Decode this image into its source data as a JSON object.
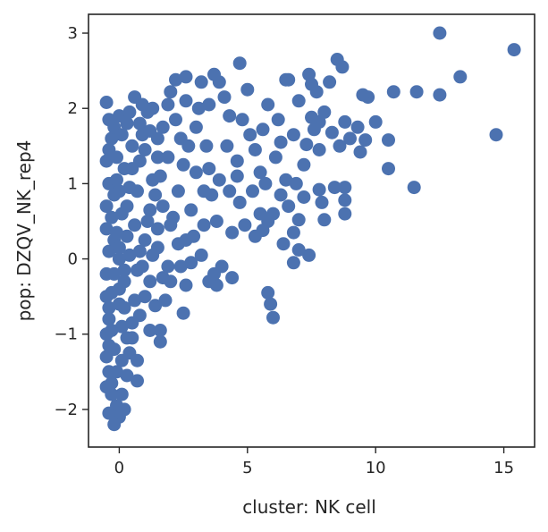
{
  "chart_data": {
    "type": "scatter",
    "title": "",
    "xlabel": "cluster: NK cell",
    "ylabel": "pop: DZQV_NK_rep4",
    "xlim": [
      -1.2,
      16.2
    ],
    "ylim": [
      -2.5,
      3.25
    ],
    "grid": false,
    "legend": "none",
    "point_color": "#4c72b0",
    "x_ticks": [
      {
        "value": 0,
        "label": "0"
      },
      {
        "value": 5,
        "label": "5"
      },
      {
        "value": 10,
        "label": "10"
      },
      {
        "value": 15,
        "label": "15"
      }
    ],
    "y_ticks": [
      {
        "value": -2,
        "label": "−2"
      },
      {
        "value": -1,
        "label": "−1"
      },
      {
        "value": 0,
        "label": "0"
      },
      {
        "value": 1,
        "label": "1"
      },
      {
        "value": 2,
        "label": "2"
      },
      {
        "value": 3,
        "label": "3"
      }
    ],
    "series": [
      {
        "values": [
          [
            12.5,
            3.0
          ],
          [
            15.4,
            2.78
          ],
          [
            13.3,
            2.42
          ],
          [
            14.7,
            1.65
          ],
          [
            12.5,
            2.18
          ],
          [
            11.6,
            2.22
          ],
          [
            11.5,
            0.95
          ],
          [
            10.7,
            2.22
          ],
          [
            10.5,
            1.2
          ],
          [
            10.5,
            1.58
          ],
          [
            10.0,
            1.82
          ],
          [
            9.7,
            2.15
          ],
          [
            9.6,
            1.58
          ],
          [
            9.5,
            2.18
          ],
          [
            9.4,
            1.42
          ],
          [
            9.3,
            1.75
          ],
          [
            9.0,
            1.6
          ],
          [
            8.8,
            1.82
          ],
          [
            8.7,
            2.55
          ],
          [
            8.5,
            2.65
          ],
          [
            8.6,
            1.5
          ],
          [
            8.8,
            0.95
          ],
          [
            8.8,
            0.78
          ],
          [
            8.8,
            0.6
          ],
          [
            8.4,
            0.95
          ],
          [
            8.3,
            1.68
          ],
          [
            8.0,
            1.95
          ],
          [
            8.2,
            2.35
          ],
          [
            7.7,
            2.22
          ],
          [
            7.4,
            2.45
          ],
          [
            7.5,
            2.32
          ],
          [
            7.8,
            1.82
          ],
          [
            7.8,
            1.45
          ],
          [
            7.5,
            1.88
          ],
          [
            7.6,
            1.72
          ],
          [
            7.3,
            1.52
          ],
          [
            7.2,
            1.25
          ],
          [
            7.2,
            0.82
          ],
          [
            7.0,
            0.52
          ],
          [
            7.8,
            0.92
          ],
          [
            7.9,
            0.75
          ],
          [
            8.0,
            0.52
          ],
          [
            7.4,
            0.05
          ],
          [
            6.8,
            -0.05
          ],
          [
            7.0,
            0.12
          ],
          [
            6.6,
            2.38
          ],
          [
            6.5,
            2.38
          ],
          [
            6.3,
            1.55
          ],
          [
            6.5,
            1.05
          ],
          [
            6.6,
            0.7
          ],
          [
            6.8,
            0.35
          ],
          [
            6.3,
            0.85
          ],
          [
            6.0,
            0.6
          ],
          [
            6.4,
            0.2
          ],
          [
            5.8,
            0.5
          ],
          [
            5.6,
            0.38
          ],
          [
            5.8,
            -0.45
          ],
          [
            5.9,
            -0.6
          ],
          [
            6.0,
            -0.78
          ],
          [
            5.3,
            0.3
          ],
          [
            5.5,
            0.6
          ],
          [
            5.5,
            1.15
          ],
          [
            5.3,
            1.45
          ],
          [
            5.6,
            1.72
          ],
          [
            5.8,
            2.05
          ],
          [
            5.0,
            2.25
          ],
          [
            4.7,
            2.6
          ],
          [
            4.8,
            1.85
          ],
          [
            4.6,
            1.3
          ],
          [
            4.7,
            0.75
          ],
          [
            4.9,
            0.45
          ],
          [
            4.4,
            0.35
          ],
          [
            4.4,
            -0.25
          ],
          [
            4.0,
            -0.1
          ],
          [
            3.8,
            -0.35
          ],
          [
            3.7,
            -0.2
          ],
          [
            3.5,
            -0.3
          ],
          [
            3.2,
            0.05
          ],
          [
            3.3,
            0.45
          ],
          [
            3.6,
            0.85
          ],
          [
            3.9,
            1.05
          ],
          [
            4.2,
            1.5
          ],
          [
            4.1,
            2.15
          ],
          [
            3.9,
            2.35
          ],
          [
            3.7,
            2.45
          ],
          [
            3.5,
            2.05
          ],
          [
            3.2,
            2.35
          ],
          [
            3.0,
            1.75
          ],
          [
            3.0,
            1.15
          ],
          [
            2.8,
            0.65
          ],
          [
            2.6,
            0.25
          ],
          [
            2.8,
            -0.05
          ],
          [
            2.6,
            -0.35
          ],
          [
            2.5,
            -0.72
          ],
          [
            2.0,
            -0.3
          ],
          [
            1.8,
            -0.55
          ],
          [
            1.7,
            -0.25
          ],
          [
            1.4,
            -0.62
          ],
          [
            1.5,
            0.15
          ],
          [
            2.1,
            0.55
          ],
          [
            2.3,
            0.9
          ],
          [
            2.5,
            1.25
          ],
          [
            2.4,
            1.6
          ],
          [
            2.6,
            2.1
          ],
          [
            2.6,
            2.42
          ],
          [
            2.2,
            2.38
          ],
          [
            2.0,
            2.22
          ],
          [
            1.9,
            2.05
          ],
          [
            1.7,
            1.75
          ],
          [
            1.5,
            1.35
          ],
          [
            1.3,
            1.05
          ],
          [
            1.2,
            0.65
          ],
          [
            1.0,
            0.25
          ],
          [
            1.0,
            -0.5
          ],
          [
            1.2,
            -0.95
          ],
          [
            1.6,
            -0.95
          ],
          [
            1.6,
            -1.1
          ],
          [
            0.8,
            -0.75
          ],
          [
            0.5,
            -1.05
          ],
          [
            0.4,
            -1.25
          ],
          [
            0.7,
            -1.35
          ],
          [
            0.3,
            -1.55
          ],
          [
            0.7,
            -1.62
          ],
          [
            0.1,
            -1.8
          ],
          [
            -0.1,
            -1.95
          ],
          [
            0.2,
            -2.0
          ],
          [
            0.0,
            -2.1
          ],
          [
            -0.2,
            -2.2
          ],
          [
            -0.4,
            -2.05
          ],
          [
            -0.3,
            -1.8
          ],
          [
            -0.5,
            -1.7
          ],
          [
            -0.4,
            -1.5
          ],
          [
            -0.5,
            -1.3
          ],
          [
            -0.5,
            -1.0
          ],
          [
            -0.4,
            -0.8
          ],
          [
            -0.5,
            -0.5
          ],
          [
            -0.5,
            -0.2
          ],
          [
            -0.4,
            0.1
          ],
          [
            -0.5,
            0.4
          ],
          [
            -0.5,
            0.7
          ],
          [
            -0.4,
            1.0
          ],
          [
            -0.5,
            1.3
          ],
          [
            -0.3,
            1.6
          ],
          [
            -0.2,
            1.75
          ],
          [
            -0.5,
            2.08
          ],
          [
            0.0,
            1.9
          ],
          [
            0.4,
            1.95
          ],
          [
            0.6,
            2.15
          ],
          [
            0.8,
            1.8
          ],
          [
            0.5,
            1.5
          ],
          [
            0.2,
            1.2
          ],
          [
            0.0,
            0.9
          ],
          [
            0.1,
            0.6
          ],
          [
            0.3,
            0.3
          ],
          [
            0.0,
            0.0
          ],
          [
            0.2,
            -0.3
          ],
          [
            0.0,
            -0.6
          ],
          [
            0.1,
            -0.9
          ],
          [
            -0.2,
            -1.2
          ],
          [
            -0.1,
            -1.5
          ],
          [
            0.3,
            -1.05
          ],
          [
            0.6,
            -0.55
          ],
          [
            0.7,
            -0.15
          ],
          [
            0.6,
            0.45
          ],
          [
            0.7,
            0.9
          ],
          [
            0.8,
            1.3
          ],
          [
            0.9,
            1.65
          ],
          [
            1.1,
            1.95
          ],
          [
            1.3,
            2.0
          ],
          [
            1.5,
            1.6
          ],
          [
            1.6,
            1.1
          ],
          [
            1.7,
            0.7
          ],
          [
            1.5,
            0.4
          ],
          [
            1.3,
            0.05
          ],
          [
            1.2,
            -0.3
          ],
          [
            -0.3,
            -0.45
          ],
          [
            -0.2,
            0.25
          ],
          [
            -0.2,
            0.85
          ],
          [
            -0.1,
            1.35
          ],
          [
            -0.3,
            0.55
          ],
          [
            -0.3,
            -0.95
          ],
          [
            -0.2,
            -0.2
          ],
          [
            0.1,
            1.65
          ],
          [
            0.4,
            0.95
          ],
          [
            0.4,
            0.05
          ],
          [
            0.5,
            -0.85
          ],
          [
            1.9,
            1.35
          ],
          [
            2.2,
            1.85
          ],
          [
            2.0,
            0.45
          ],
          [
            1.9,
            -0.1
          ],
          [
            2.3,
            0.2
          ],
          [
            3.1,
            2.0
          ],
          [
            3.4,
            1.5
          ],
          [
            3.3,
            0.9
          ],
          [
            3.8,
            0.5
          ],
          [
            4.3,
            0.9
          ],
          [
            4.3,
            1.9
          ],
          [
            3.5,
            1.2
          ],
          [
            2.7,
            1.5
          ],
          [
            2.9,
            0.3
          ],
          [
            4.6,
            1.1
          ],
          [
            5.1,
            1.65
          ],
          [
            5.2,
            0.9
          ],
          [
            6.1,
            1.35
          ],
          [
            6.2,
            1.85
          ],
          [
            6.8,
            1.65
          ],
          [
            7.0,
            2.1
          ],
          [
            6.9,
            1.0
          ],
          [
            5.7,
            1.0
          ],
          [
            2.4,
            -0.1
          ],
          [
            1.1,
            0.5
          ],
          [
            0.9,
            -0.1
          ],
          [
            0.8,
            0.1
          ],
          [
            -0.1,
            0.35
          ],
          [
            -0.4,
            -0.65
          ],
          [
            -0.4,
            -1.15
          ],
          [
            -0.3,
            -1.65
          ],
          [
            0.1,
            -1.35
          ],
          [
            0.2,
            -0.65
          ],
          [
            0.0,
            -0.4
          ],
          [
            0.3,
            0.7
          ],
          [
            0.5,
            1.2
          ],
          [
            0.3,
            1.8
          ],
          [
            0.9,
            2.05
          ],
          [
            1.0,
            1.45
          ],
          [
            1.2,
            1.7
          ],
          [
            1.4,
            0.85
          ],
          [
            -0.4,
            1.85
          ],
          [
            -0.4,
            1.45
          ],
          [
            -0.1,
            1.05
          ],
          [
            0.0,
            0.15
          ],
          [
            0.2,
            -0.15
          ]
        ]
      }
    ]
  }
}
